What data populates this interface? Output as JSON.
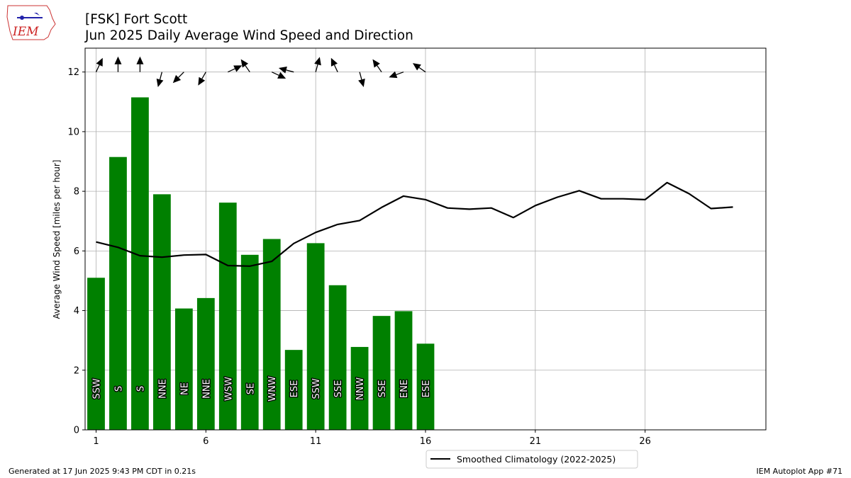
{
  "header": {
    "title_line1": "[FSK] Fort Scott",
    "title_line2": "Jun 2025 Daily Average Wind Speed and Direction"
  },
  "logo": {
    "text": "IEM",
    "icon": "iowa-weather-logo-icon"
  },
  "footer": {
    "generated": "Generated at 17 Jun 2025 9:43 PM CDT in 0.21s",
    "app": "IEM Autoplot App #71"
  },
  "colors": {
    "bars": "#008000",
    "climatology": "#000000",
    "grid": "#b0b0b0",
    "label_text": "#ffffff"
  },
  "chart_data": {
    "type": "bar",
    "title": "[FSK] Fort Scott\nJun 2025 Daily Average Wind Speed and Direction",
    "xlabel": "",
    "ylabel": "Average Wind Speed [miles per hour]",
    "xlim": [
      0.5,
      31.5
    ],
    "ylim": [
      0,
      12.8
    ],
    "xticks": [
      1,
      6,
      11,
      16,
      21,
      26
    ],
    "yticks": [
      0,
      2,
      4,
      6,
      8,
      10,
      12
    ],
    "grid": true,
    "legend": {
      "position": "bottom-center-outside",
      "entries": [
        "Smoothed Climatology (2022-2025)"
      ]
    },
    "days": [
      1,
      2,
      3,
      4,
      5,
      6,
      7,
      8,
      9,
      10,
      11,
      12,
      13,
      14,
      15,
      16
    ],
    "values": [
      5.1,
      9.15,
      11.15,
      7.9,
      4.07,
      4.42,
      7.62,
      5.87,
      6.4,
      2.68,
      6.26,
      4.85,
      2.78,
      3.82,
      3.98,
      2.89
    ],
    "direction_labels": [
      "SSW",
      "S",
      "S",
      "NNE",
      "NE",
      "NNE",
      "WSW",
      "SE",
      "WNW",
      "ESE",
      "SSW",
      "SSE",
      "NNW",
      "SSE",
      "ENE",
      "ESE"
    ],
    "direction_degrees": [
      205,
      180,
      180,
      15,
      45,
      30,
      245,
      145,
      295,
      105,
      195,
      155,
      345,
      145,
      70,
      125
    ],
    "arrow_level": 12,
    "series": [
      {
        "name": "Smoothed Climatology (2022-2025)",
        "type": "line",
        "x": [
          1,
          2,
          3,
          4,
          5,
          6,
          7,
          8,
          9,
          10,
          11,
          12,
          13,
          14,
          15,
          16,
          17,
          18,
          19,
          20,
          21,
          22,
          23,
          24,
          25,
          26,
          27,
          28,
          29,
          30
        ],
        "values": [
          6.3,
          6.12,
          5.84,
          5.79,
          5.86,
          5.88,
          5.51,
          5.49,
          5.65,
          6.25,
          6.62,
          6.89,
          7.02,
          7.46,
          7.84,
          7.72,
          7.44,
          7.4,
          7.44,
          7.12,
          7.52,
          7.8,
          8.02,
          7.75,
          7.75,
          7.72,
          8.29,
          7.92,
          7.42,
          7.47
        ]
      }
    ]
  }
}
